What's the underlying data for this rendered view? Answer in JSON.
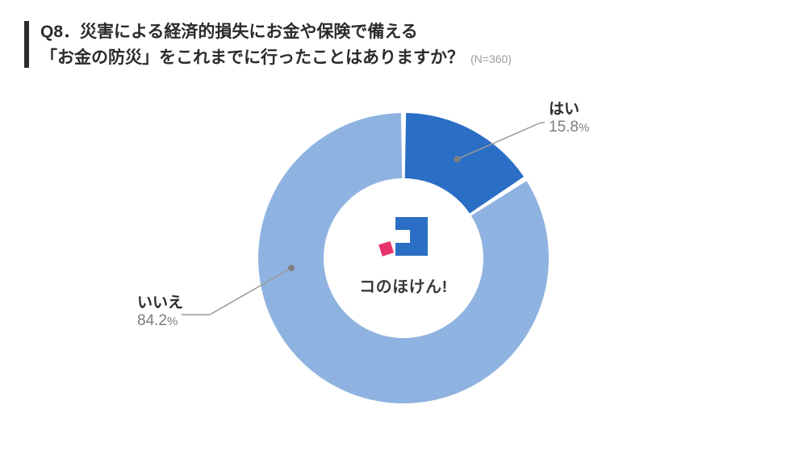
{
  "question": {
    "number": "Q8．",
    "line1": "災害による経済的損失にお金や保険で備える",
    "line2": "「お金の防災」をこれまでに行ったことはありますか？",
    "sample": "(N=360)"
  },
  "chart": {
    "type": "donut",
    "slices": [
      {
        "label": "はい",
        "value": 15.8,
        "display": "15.8",
        "unit": "%",
        "color": "#2a6ec5"
      },
      {
        "label": "いいえ",
        "value": 84.2,
        "display": "84.2",
        "unit": "%",
        "color": "#8fb3e0"
      }
    ],
    "gap_deg": 2,
    "inner_radius_ratio": 0.55,
    "background_color": "#ffffff",
    "start_angle_deg": -90,
    "callout": {
      "line_color": "#9a9a9a",
      "dot_color": "#808080",
      "dot_radius": 4
    }
  },
  "logo": {
    "text": "コのほけん!",
    "blue": "#2a6ec5",
    "red": "#e5336a"
  }
}
